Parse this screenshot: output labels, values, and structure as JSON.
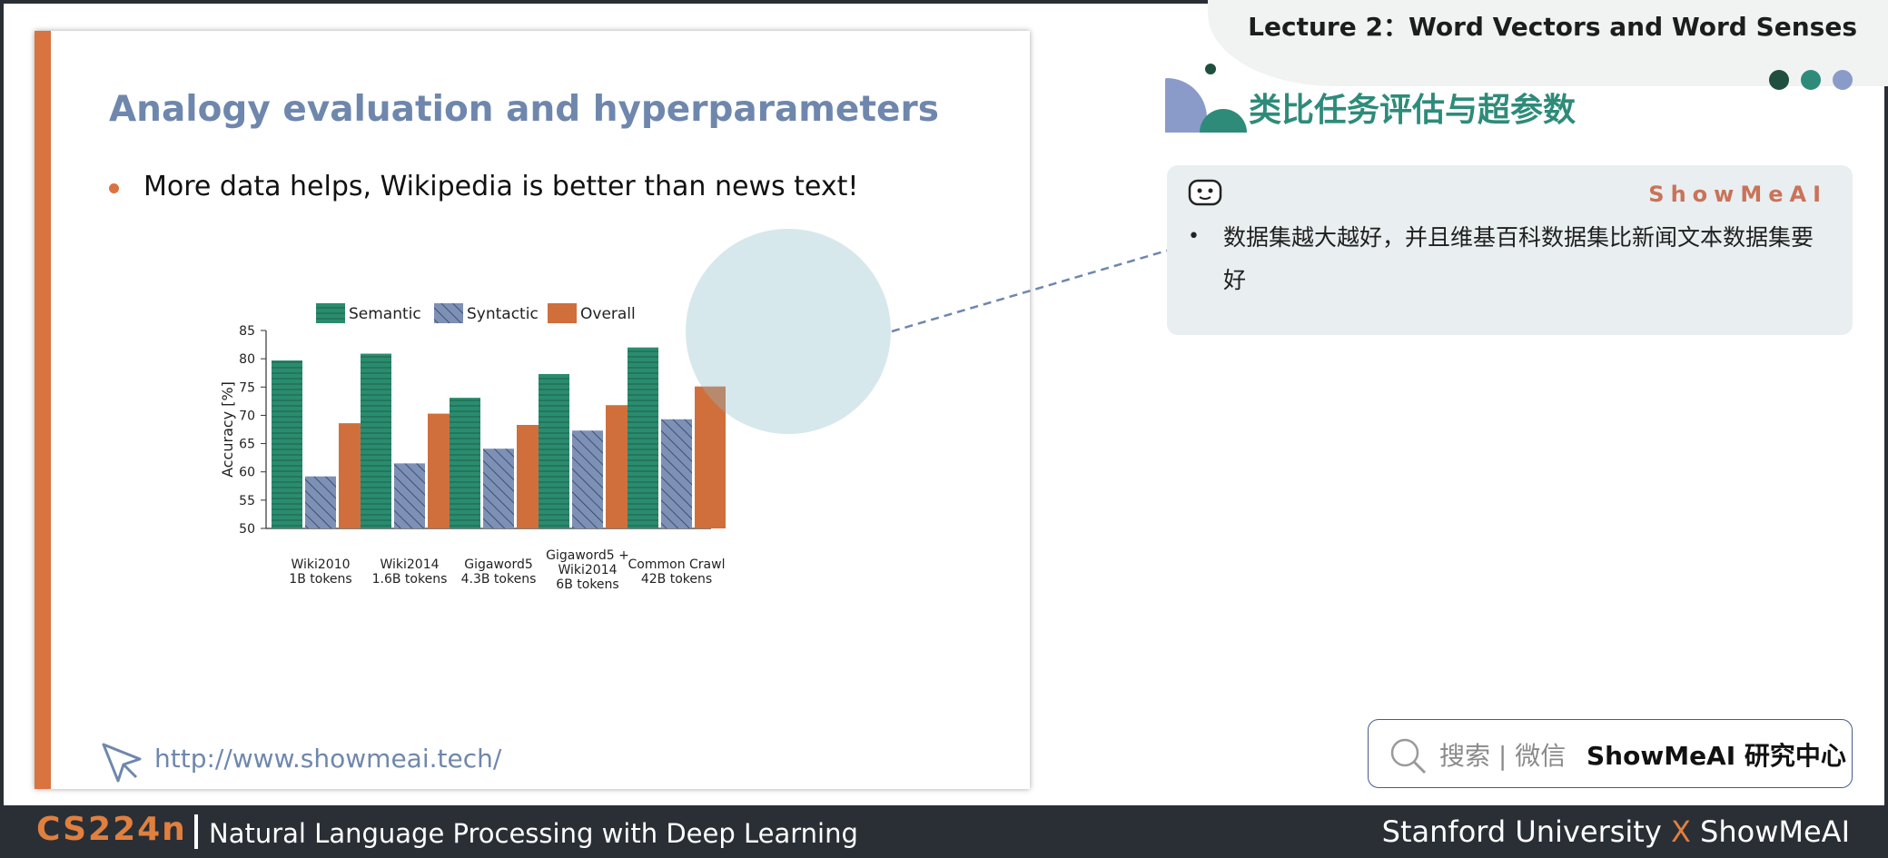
{
  "header": {
    "lecture_title": "Lecture 2：Word Vectors and Word Senses",
    "dot_colors": [
      "#1f4f3f",
      "#2e8b7a",
      "#8a9bc9"
    ]
  },
  "slide": {
    "title": "Analogy evaluation and hyperparameters",
    "bullet": "More data helps, Wikipedia is better than news text!",
    "url": "http://www.showmeai.tech/"
  },
  "chart_data": {
    "type": "bar",
    "legend": [
      "Semantic",
      "Syntactic",
      "Overall"
    ],
    "categories": [
      [
        "Wiki2010",
        "1B tokens"
      ],
      [
        "Wiki2014",
        "1.6B tokens"
      ],
      [
        "Gigaword5",
        "4.3B tokens"
      ],
      [
        "Gigaword5 +",
        "Wiki2014",
        "6B tokens"
      ],
      [
        "Common Crawl",
        "42B tokens"
      ]
    ],
    "series": [
      {
        "name": "Semantic",
        "values": [
          79.7,
          80.9,
          73.1,
          77.3,
          82.0
        ]
      },
      {
        "name": "Syntactic",
        "values": [
          59.2,
          61.5,
          64.1,
          67.3,
          69.3
        ]
      },
      {
        "name": "Overall",
        "values": [
          68.6,
          70.3,
          68.3,
          71.8,
          75.1
        ]
      }
    ],
    "ylabel": "Accuracy [%]",
    "ylim": [
      50,
      85
    ],
    "yticks": [
      50,
      55,
      60,
      65,
      70,
      75,
      80,
      85
    ],
    "colors": {
      "Semantic": "#2a8c6e",
      "Syntactic": "#7d90b5",
      "Overall": "#d06f3c"
    }
  },
  "right": {
    "title": "类比任务评估与超参数",
    "brand": "ShowMeAI",
    "note": "数据集越大越好，并且维基百科数据集比新闻文本数据集要好"
  },
  "search": {
    "hint": "搜索 | 微信",
    "brand": "ShowMeAI 研究中心"
  },
  "footer": {
    "course": "CS224n",
    "subtitle": "Natural Language Processing with Deep Learning",
    "right_a": "Stanford University",
    "right_x": "X",
    "right_b": "ShowMeAI"
  }
}
